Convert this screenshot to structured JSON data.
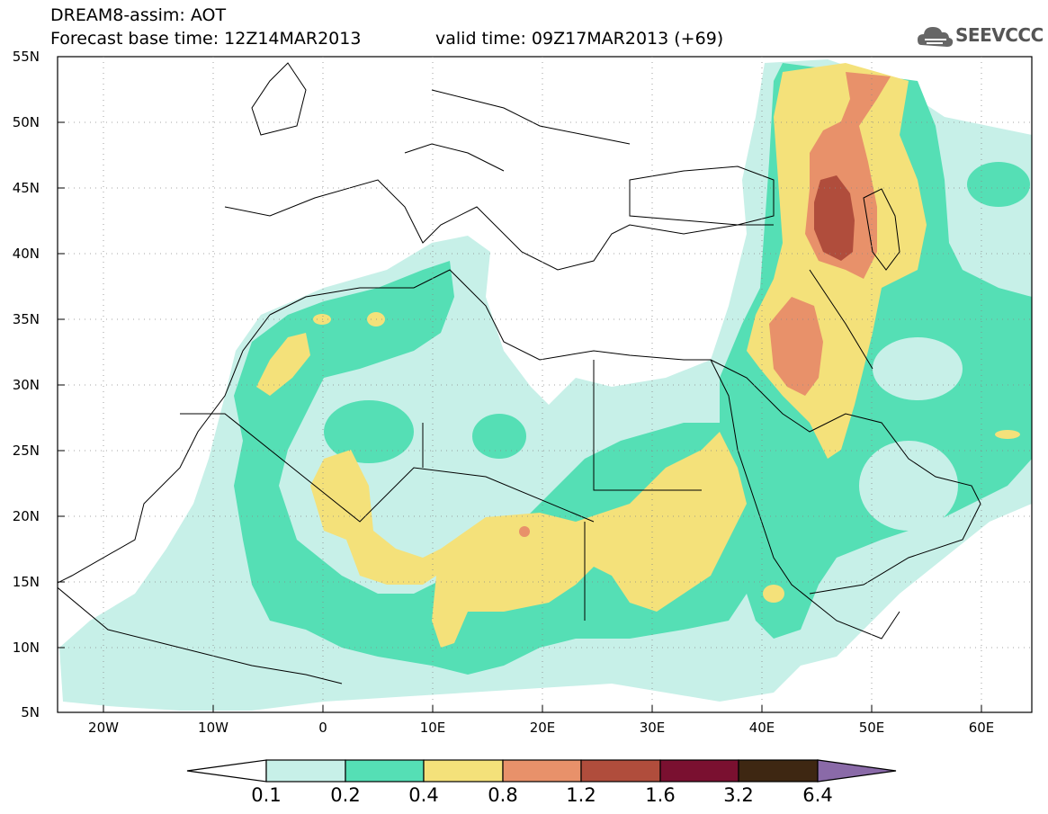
{
  "header": {
    "title": "DREAM8-assim: AOT",
    "base_time": "Forecast base time: 12Z14MAR2013",
    "valid_time": "valid time: 09Z17MAR2013 (+69)",
    "logo_text": "SEEVCCC"
  },
  "map": {
    "lat_labels": [
      "55N",
      "50N",
      "45N",
      "40N",
      "35N",
      "30N",
      "25N",
      "20N",
      "15N",
      "10N",
      "5N"
    ],
    "lon_labels": [
      "20W",
      "10W",
      "0",
      "10E",
      "20E",
      "30E",
      "40E",
      "50E",
      "60E"
    ]
  },
  "colorbar": {
    "labels": [
      "0.1",
      "0.2",
      "0.4",
      "0.8",
      "1.2",
      "1.6",
      "3.2",
      "6.4"
    ],
    "colors": [
      "#c7f0e8",
      "#55dfb5",
      "#f4e17a",
      "#e8916a",
      "#b04d3c",
      "#7a1030",
      "#3e2712",
      "#8a6aa8"
    ]
  }
}
